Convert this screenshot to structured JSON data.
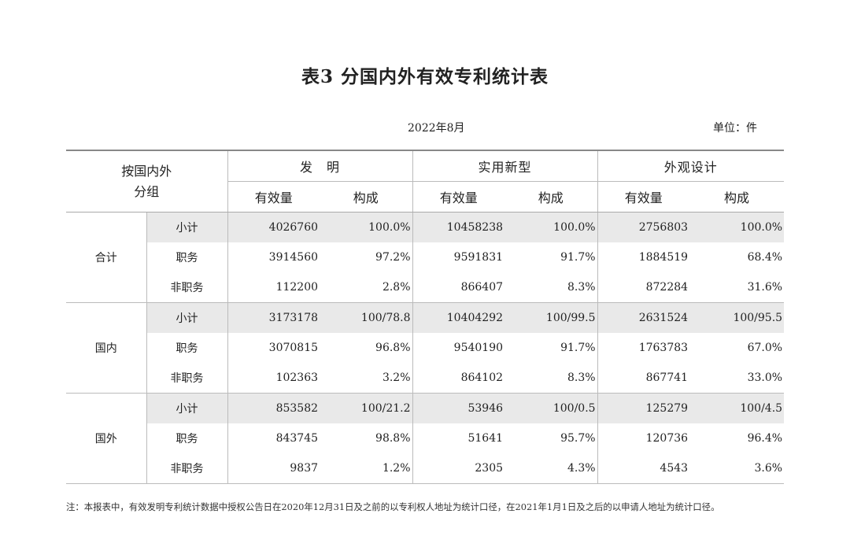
{
  "title": "表3  分国内外有效专利统计表",
  "date": "2022年8月",
  "unit": "单位：件",
  "header": {
    "group_label": "按国内外\n分组",
    "sections": [
      "发　明",
      "实用新型",
      "外观设计"
    ],
    "sub_count": "有效量",
    "sub_share": "构成"
  },
  "groups": [
    {
      "name": "合计",
      "rows": [
        {
          "label": "小计",
          "values": [
            "4026760",
            "100.0%",
            "10458238",
            "100.0%",
            "2756803",
            "100.0%"
          ]
        },
        {
          "label": "职务",
          "values": [
            "3914560",
            "97.2%",
            "9591831",
            "91.7%",
            "1884519",
            "68.4%"
          ]
        },
        {
          "label": "非职务",
          "values": [
            "112200",
            "2.8%",
            "866407",
            "8.3%",
            "872284",
            "31.6%"
          ]
        }
      ]
    },
    {
      "name": "国内",
      "rows": [
        {
          "label": "小计",
          "values": [
            "3173178",
            "100/78.8",
            "10404292",
            "100/99.5",
            "2631524",
            "100/95.5"
          ]
        },
        {
          "label": "职务",
          "values": [
            "3070815",
            "96.8%",
            "9540190",
            "91.7%",
            "1763783",
            "67.0%"
          ]
        },
        {
          "label": "非职务",
          "values": [
            "102363",
            "3.2%",
            "864102",
            "8.3%",
            "867741",
            "33.0%"
          ]
        }
      ]
    },
    {
      "name": "国外",
      "rows": [
        {
          "label": "小计",
          "values": [
            "853582",
            "100/21.2",
            "53946",
            "100/0.5",
            "125279",
            "100/4.5"
          ]
        },
        {
          "label": "职务",
          "values": [
            "843745",
            "98.8%",
            "51641",
            "95.7%",
            "120736",
            "96.4%"
          ]
        },
        {
          "label": "非职务",
          "values": [
            "9837",
            "1.2%",
            "2305",
            "4.3%",
            "4543",
            "3.6%"
          ]
        }
      ]
    }
  ],
  "footnote": "注：本报表中，有效发明专利统计数据中授权公告日在2020年12月31日及之前的以专利权人地址为统计口径，在2021年1月1日及之后的以申请人地址为统计口径。"
}
